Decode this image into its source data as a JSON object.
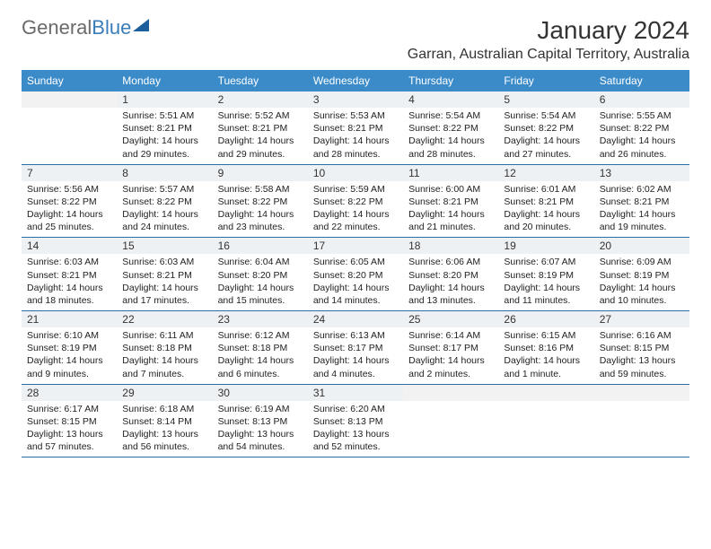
{
  "header": {
    "logo_general": "General",
    "logo_blue": "Blue",
    "month_title": "January 2024",
    "location": "Garran, Australian Capital Territory, Australia"
  },
  "calendar": {
    "day_headers": [
      "Sunday",
      "Monday",
      "Tuesday",
      "Wednesday",
      "Thursday",
      "Friday",
      "Saturday"
    ],
    "header_bg": "#3b8bc9",
    "header_fg": "#ffffff",
    "daynum_bg": "#eef1f3",
    "rule_color": "#2a6ea8",
    "font_size_header": 12,
    "font_size_cell": 10.5,
    "weeks": [
      [
        {
          "n": "",
          "sunrise": "",
          "sunset": "",
          "daylight": ""
        },
        {
          "n": "1",
          "sunrise": "Sunrise: 5:51 AM",
          "sunset": "Sunset: 8:21 PM",
          "daylight": "Daylight: 14 hours and 29 minutes."
        },
        {
          "n": "2",
          "sunrise": "Sunrise: 5:52 AM",
          "sunset": "Sunset: 8:21 PM",
          "daylight": "Daylight: 14 hours and 29 minutes."
        },
        {
          "n": "3",
          "sunrise": "Sunrise: 5:53 AM",
          "sunset": "Sunset: 8:21 PM",
          "daylight": "Daylight: 14 hours and 28 minutes."
        },
        {
          "n": "4",
          "sunrise": "Sunrise: 5:54 AM",
          "sunset": "Sunset: 8:22 PM",
          "daylight": "Daylight: 14 hours and 28 minutes."
        },
        {
          "n": "5",
          "sunrise": "Sunrise: 5:54 AM",
          "sunset": "Sunset: 8:22 PM",
          "daylight": "Daylight: 14 hours and 27 minutes."
        },
        {
          "n": "6",
          "sunrise": "Sunrise: 5:55 AM",
          "sunset": "Sunset: 8:22 PM",
          "daylight": "Daylight: 14 hours and 26 minutes."
        }
      ],
      [
        {
          "n": "7",
          "sunrise": "Sunrise: 5:56 AM",
          "sunset": "Sunset: 8:22 PM",
          "daylight": "Daylight: 14 hours and 25 minutes."
        },
        {
          "n": "8",
          "sunrise": "Sunrise: 5:57 AM",
          "sunset": "Sunset: 8:22 PM",
          "daylight": "Daylight: 14 hours and 24 minutes."
        },
        {
          "n": "9",
          "sunrise": "Sunrise: 5:58 AM",
          "sunset": "Sunset: 8:22 PM",
          "daylight": "Daylight: 14 hours and 23 minutes."
        },
        {
          "n": "10",
          "sunrise": "Sunrise: 5:59 AM",
          "sunset": "Sunset: 8:22 PM",
          "daylight": "Daylight: 14 hours and 22 minutes."
        },
        {
          "n": "11",
          "sunrise": "Sunrise: 6:00 AM",
          "sunset": "Sunset: 8:21 PM",
          "daylight": "Daylight: 14 hours and 21 minutes."
        },
        {
          "n": "12",
          "sunrise": "Sunrise: 6:01 AM",
          "sunset": "Sunset: 8:21 PM",
          "daylight": "Daylight: 14 hours and 20 minutes."
        },
        {
          "n": "13",
          "sunrise": "Sunrise: 6:02 AM",
          "sunset": "Sunset: 8:21 PM",
          "daylight": "Daylight: 14 hours and 19 minutes."
        }
      ],
      [
        {
          "n": "14",
          "sunrise": "Sunrise: 6:03 AM",
          "sunset": "Sunset: 8:21 PM",
          "daylight": "Daylight: 14 hours and 18 minutes."
        },
        {
          "n": "15",
          "sunrise": "Sunrise: 6:03 AM",
          "sunset": "Sunset: 8:21 PM",
          "daylight": "Daylight: 14 hours and 17 minutes."
        },
        {
          "n": "16",
          "sunrise": "Sunrise: 6:04 AM",
          "sunset": "Sunset: 8:20 PM",
          "daylight": "Daylight: 14 hours and 15 minutes."
        },
        {
          "n": "17",
          "sunrise": "Sunrise: 6:05 AM",
          "sunset": "Sunset: 8:20 PM",
          "daylight": "Daylight: 14 hours and 14 minutes."
        },
        {
          "n": "18",
          "sunrise": "Sunrise: 6:06 AM",
          "sunset": "Sunset: 8:20 PM",
          "daylight": "Daylight: 14 hours and 13 minutes."
        },
        {
          "n": "19",
          "sunrise": "Sunrise: 6:07 AM",
          "sunset": "Sunset: 8:19 PM",
          "daylight": "Daylight: 14 hours and 11 minutes."
        },
        {
          "n": "20",
          "sunrise": "Sunrise: 6:09 AM",
          "sunset": "Sunset: 8:19 PM",
          "daylight": "Daylight: 14 hours and 10 minutes."
        }
      ],
      [
        {
          "n": "21",
          "sunrise": "Sunrise: 6:10 AM",
          "sunset": "Sunset: 8:19 PM",
          "daylight": "Daylight: 14 hours and 9 minutes."
        },
        {
          "n": "22",
          "sunrise": "Sunrise: 6:11 AM",
          "sunset": "Sunset: 8:18 PM",
          "daylight": "Daylight: 14 hours and 7 minutes."
        },
        {
          "n": "23",
          "sunrise": "Sunrise: 6:12 AM",
          "sunset": "Sunset: 8:18 PM",
          "daylight": "Daylight: 14 hours and 6 minutes."
        },
        {
          "n": "24",
          "sunrise": "Sunrise: 6:13 AM",
          "sunset": "Sunset: 8:17 PM",
          "daylight": "Daylight: 14 hours and 4 minutes."
        },
        {
          "n": "25",
          "sunrise": "Sunrise: 6:14 AM",
          "sunset": "Sunset: 8:17 PM",
          "daylight": "Daylight: 14 hours and 2 minutes."
        },
        {
          "n": "26",
          "sunrise": "Sunrise: 6:15 AM",
          "sunset": "Sunset: 8:16 PM",
          "daylight": "Daylight: 14 hours and 1 minute."
        },
        {
          "n": "27",
          "sunrise": "Sunrise: 6:16 AM",
          "sunset": "Sunset: 8:15 PM",
          "daylight": "Daylight: 13 hours and 59 minutes."
        }
      ],
      [
        {
          "n": "28",
          "sunrise": "Sunrise: 6:17 AM",
          "sunset": "Sunset: 8:15 PM",
          "daylight": "Daylight: 13 hours and 57 minutes."
        },
        {
          "n": "29",
          "sunrise": "Sunrise: 6:18 AM",
          "sunset": "Sunset: 8:14 PM",
          "daylight": "Daylight: 13 hours and 56 minutes."
        },
        {
          "n": "30",
          "sunrise": "Sunrise: 6:19 AM",
          "sunset": "Sunset: 8:13 PM",
          "daylight": "Daylight: 13 hours and 54 minutes."
        },
        {
          "n": "31",
          "sunrise": "Sunrise: 6:20 AM",
          "sunset": "Sunset: 8:13 PM",
          "daylight": "Daylight: 13 hours and 52 minutes."
        },
        {
          "n": "",
          "sunrise": "",
          "sunset": "",
          "daylight": ""
        },
        {
          "n": "",
          "sunrise": "",
          "sunset": "",
          "daylight": ""
        },
        {
          "n": "",
          "sunrise": "",
          "sunset": "",
          "daylight": ""
        }
      ]
    ]
  }
}
